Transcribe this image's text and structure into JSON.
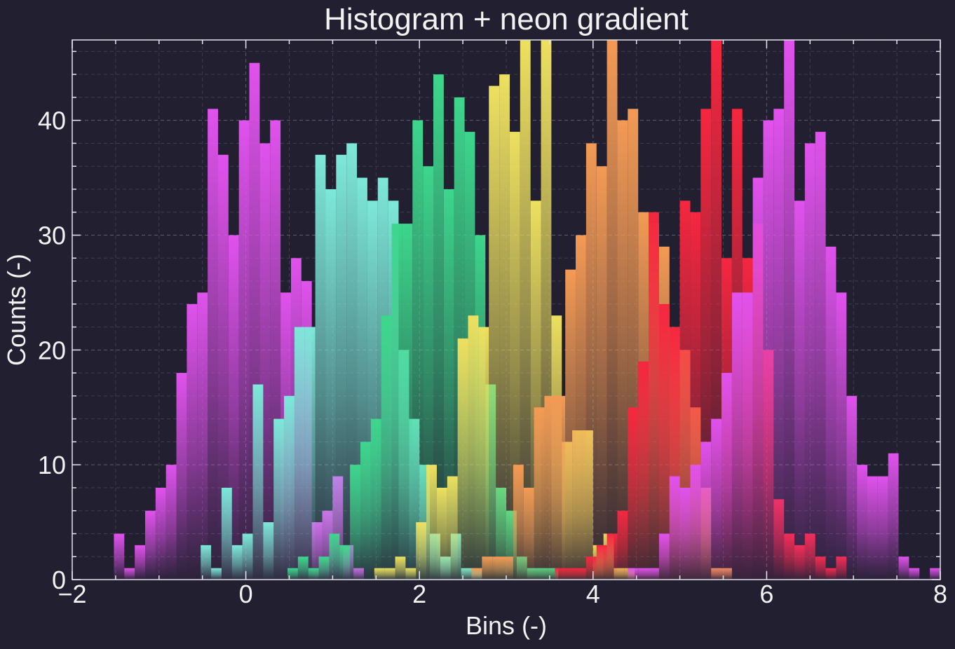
{
  "chart_data": {
    "type": "bar",
    "title": "Histogram + neon gradient",
    "xlabel": "Bins (-)",
    "ylabel": "Counts (-)",
    "xlim": [
      -2,
      8
    ],
    "ylim": [
      0,
      47
    ],
    "xticks": [
      -2,
      0,
      2,
      4,
      6,
      8
    ],
    "xtick_labels": [
      "−2",
      "0",
      "2",
      "4",
      "6",
      "8"
    ],
    "yticks": [
      0,
      10,
      20,
      30,
      40
    ],
    "ytick_labels": [
      "0",
      "10",
      "20",
      "30",
      "40"
    ],
    "grid": true,
    "bin_width": 0.12,
    "series": [
      {
        "color": "#e052ed",
        "bins": [
          {
            "x": -1.46,
            "count": 4
          },
          {
            "x": -1.34,
            "count": 1
          },
          {
            "x": -1.22,
            "count": 3
          },
          {
            "x": -1.1,
            "count": 6
          },
          {
            "x": -0.98,
            "count": 8
          },
          {
            "x": -0.86,
            "count": 10
          },
          {
            "x": -0.74,
            "count": 18
          },
          {
            "x": -0.62,
            "count": 24
          },
          {
            "x": -0.5,
            "count": 25
          },
          {
            "x": -0.38,
            "count": 41
          },
          {
            "x": -0.26,
            "count": 37
          },
          {
            "x": -0.14,
            "count": 30
          },
          {
            "x": -0.02,
            "count": 40
          },
          {
            "x": 0.1,
            "count": 45
          },
          {
            "x": 0.22,
            "count": 38
          },
          {
            "x": 0.34,
            "count": 40
          },
          {
            "x": 0.46,
            "count": 25
          },
          {
            "x": 0.58,
            "count": 28
          },
          {
            "x": 0.7,
            "count": 26
          },
          {
            "x": 0.82,
            "count": 5
          },
          {
            "x": 0.94,
            "count": 6
          },
          {
            "x": 1.06,
            "count": 9
          },
          {
            "x": 1.18,
            "count": 3
          },
          {
            "x": 1.3,
            "count": 1
          }
        ]
      },
      {
        "color": "#7de8d9",
        "bins": [
          {
            "x": -0.46,
            "count": 3
          },
          {
            "x": -0.34,
            "count": 1
          },
          {
            "x": -0.22,
            "count": 8
          },
          {
            "x": -0.1,
            "count": 3
          },
          {
            "x": 0.02,
            "count": 4
          },
          {
            "x": 0.14,
            "count": 17
          },
          {
            "x": 0.26,
            "count": 5
          },
          {
            "x": 0.38,
            "count": 14
          },
          {
            "x": 0.5,
            "count": 16
          },
          {
            "x": 0.62,
            "count": 22
          },
          {
            "x": 0.74,
            "count": 22
          },
          {
            "x": 0.86,
            "count": 37
          },
          {
            "x": 0.98,
            "count": 34
          },
          {
            "x": 1.1,
            "count": 37
          },
          {
            "x": 1.22,
            "count": 38
          },
          {
            "x": 1.34,
            "count": 35
          },
          {
            "x": 1.46,
            "count": 33
          },
          {
            "x": 1.58,
            "count": 35
          },
          {
            "x": 1.7,
            "count": 33
          },
          {
            "x": 1.82,
            "count": 20
          },
          {
            "x": 1.94,
            "count": 14
          },
          {
            "x": 2.06,
            "count": 10
          },
          {
            "x": 2.18,
            "count": 4
          },
          {
            "x": 2.3,
            "count": 2
          },
          {
            "x": 2.42,
            "count": 4
          },
          {
            "x": 2.54,
            "count": 1
          },
          {
            "x": 2.66,
            "count": 1
          }
        ]
      },
      {
        "color": "#3dd68c",
        "bins": [
          {
            "x": 0.54,
            "count": 1
          },
          {
            "x": 0.66,
            "count": 2
          },
          {
            "x": 0.78,
            "count": 1
          },
          {
            "x": 0.9,
            "count": 2
          },
          {
            "x": 1.02,
            "count": 4
          },
          {
            "x": 1.14,
            "count": 3
          },
          {
            "x": 1.26,
            "count": 10
          },
          {
            "x": 1.38,
            "count": 12
          },
          {
            "x": 1.5,
            "count": 14
          },
          {
            "x": 1.62,
            "count": 23
          },
          {
            "x": 1.74,
            "count": 31
          },
          {
            "x": 1.86,
            "count": 31
          },
          {
            "x": 1.98,
            "count": 40
          },
          {
            "x": 2.1,
            "count": 36
          },
          {
            "x": 2.22,
            "count": 44
          },
          {
            "x": 2.34,
            "count": 34
          },
          {
            "x": 2.46,
            "count": 42
          },
          {
            "x": 2.58,
            "count": 39
          },
          {
            "x": 2.7,
            "count": 30
          },
          {
            "x": 2.82,
            "count": 17
          },
          {
            "x": 2.94,
            "count": 8
          },
          {
            "x": 3.06,
            "count": 6
          },
          {
            "x": 3.18,
            "count": 2
          },
          {
            "x": 3.3,
            "count": 1
          },
          {
            "x": 3.42,
            "count": 1
          },
          {
            "x": 3.54,
            "count": 1
          }
        ]
      },
      {
        "color": "#ede060",
        "bins": [
          {
            "x": 1.54,
            "count": 1
          },
          {
            "x": 1.66,
            "count": 1
          },
          {
            "x": 1.78,
            "count": 2
          },
          {
            "x": 1.9,
            "count": 1
          },
          {
            "x": 2.02,
            "count": 5
          },
          {
            "x": 2.14,
            "count": 10
          },
          {
            "x": 2.26,
            "count": 8
          },
          {
            "x": 2.38,
            "count": 9
          },
          {
            "x": 2.5,
            "count": 21
          },
          {
            "x": 2.62,
            "count": 23
          },
          {
            "x": 2.74,
            "count": 22
          },
          {
            "x": 2.86,
            "count": 43
          },
          {
            "x": 2.98,
            "count": 44
          },
          {
            "x": 3.1,
            "count": 39
          },
          {
            "x": 3.22,
            "count": 48
          },
          {
            "x": 3.34,
            "count": 33
          },
          {
            "x": 3.46,
            "count": 48
          },
          {
            "x": 3.58,
            "count": 23
          },
          {
            "x": 3.7,
            "count": 12
          },
          {
            "x": 3.82,
            "count": 13
          },
          {
            "x": 3.94,
            "count": 13
          },
          {
            "x": 4.06,
            "count": 3
          },
          {
            "x": 4.18,
            "count": 4
          },
          {
            "x": 4.3,
            "count": 1
          },
          {
            "x": 4.42,
            "count": 1
          }
        ]
      },
      {
        "color": "#f39a55",
        "bins": [
          {
            "x": 2.66,
            "count": 1
          },
          {
            "x": 2.78,
            "count": 2
          },
          {
            "x": 2.9,
            "count": 2
          },
          {
            "x": 3.02,
            "count": 2
          },
          {
            "x": 3.14,
            "count": 10
          },
          {
            "x": 3.26,
            "count": 8
          },
          {
            "x": 3.38,
            "count": 15
          },
          {
            "x": 3.5,
            "count": 16
          },
          {
            "x": 3.62,
            "count": 16
          },
          {
            "x": 3.74,
            "count": 27
          },
          {
            "x": 3.86,
            "count": 30
          },
          {
            "x": 3.98,
            "count": 38
          },
          {
            "x": 4.1,
            "count": 36
          },
          {
            "x": 4.22,
            "count": 47
          },
          {
            "x": 4.34,
            "count": 40
          },
          {
            "x": 4.46,
            "count": 41
          },
          {
            "x": 4.58,
            "count": 32
          },
          {
            "x": 4.7,
            "count": 31
          },
          {
            "x": 4.82,
            "count": 29
          },
          {
            "x": 4.94,
            "count": 22
          },
          {
            "x": 5.06,
            "count": 20
          },
          {
            "x": 5.18,
            "count": 15
          },
          {
            "x": 5.3,
            "count": 8
          },
          {
            "x": 5.42,
            "count": 1
          },
          {
            "x": 5.54,
            "count": 1
          }
        ]
      },
      {
        "color": "#f5273f",
        "bins": [
          {
            "x": 3.62,
            "count": 1
          },
          {
            "x": 3.74,
            "count": 1
          },
          {
            "x": 3.86,
            "count": 1
          },
          {
            "x": 3.98,
            "count": 2
          },
          {
            "x": 4.1,
            "count": 3
          },
          {
            "x": 4.22,
            "count": 4
          },
          {
            "x": 4.34,
            "count": 6
          },
          {
            "x": 4.46,
            "count": 15
          },
          {
            "x": 4.58,
            "count": 19
          },
          {
            "x": 4.7,
            "count": 32
          },
          {
            "x": 4.82,
            "count": 24
          },
          {
            "x": 4.94,
            "count": 22
          },
          {
            "x": 5.06,
            "count": 33
          },
          {
            "x": 5.18,
            "count": 32
          },
          {
            "x": 5.3,
            "count": 41
          },
          {
            "x": 5.42,
            "count": 48
          },
          {
            "x": 5.54,
            "count": 28
          },
          {
            "x": 5.66,
            "count": 41
          },
          {
            "x": 5.78,
            "count": 28
          },
          {
            "x": 5.9,
            "count": 31
          },
          {
            "x": 6.02,
            "count": 20
          },
          {
            "x": 6.14,
            "count": 7
          },
          {
            "x": 6.26,
            "count": 4
          },
          {
            "x": 6.38,
            "count": 3
          },
          {
            "x": 6.5,
            "count": 4
          },
          {
            "x": 6.62,
            "count": 2
          },
          {
            "x": 6.74,
            "count": 1
          },
          {
            "x": 6.86,
            "count": 2
          }
        ]
      },
      {
        "color": "#e052ed",
        "bins": [
          {
            "x": 4.46,
            "count": 1
          },
          {
            "x": 4.58,
            "count": 1
          },
          {
            "x": 4.7,
            "count": 1
          },
          {
            "x": 4.82,
            "count": 4
          },
          {
            "x": 4.94,
            "count": 9
          },
          {
            "x": 5.06,
            "count": 8
          },
          {
            "x": 5.18,
            "count": 10
          },
          {
            "x": 5.3,
            "count": 12
          },
          {
            "x": 5.42,
            "count": 14
          },
          {
            "x": 5.54,
            "count": 18
          },
          {
            "x": 5.66,
            "count": 25
          },
          {
            "x": 5.78,
            "count": 25
          },
          {
            "x": 5.9,
            "count": 35
          },
          {
            "x": 6.02,
            "count": 40
          },
          {
            "x": 6.14,
            "count": 41
          },
          {
            "x": 6.26,
            "count": 48
          },
          {
            "x": 6.38,
            "count": 33
          },
          {
            "x": 6.5,
            "count": 38
          },
          {
            "x": 6.62,
            "count": 39
          },
          {
            "x": 6.74,
            "count": 29
          },
          {
            "x": 6.86,
            "count": 25
          },
          {
            "x": 6.98,
            "count": 16
          },
          {
            "x": 7.1,
            "count": 10
          },
          {
            "x": 7.22,
            "count": 9
          },
          {
            "x": 7.34,
            "count": 9
          },
          {
            "x": 7.46,
            "count": 11
          },
          {
            "x": 7.58,
            "count": 2
          },
          {
            "x": 7.7,
            "count": 1
          },
          {
            "x": 7.94,
            "count": 1
          }
        ]
      }
    ]
  }
}
